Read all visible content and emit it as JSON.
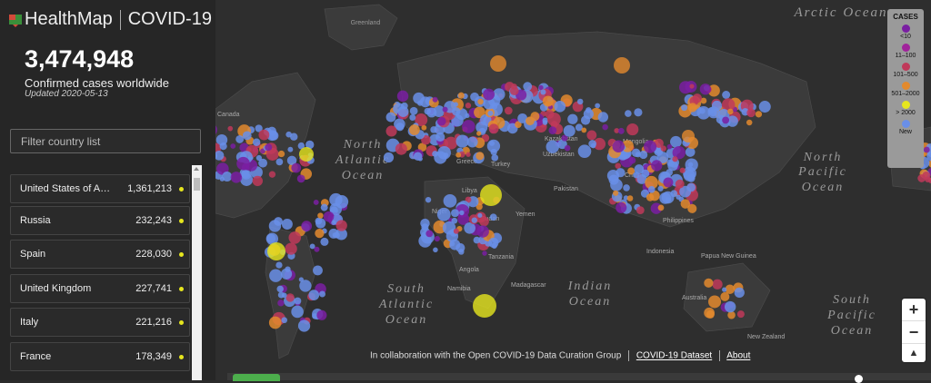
{
  "header": {
    "brand": "HealthMap",
    "product": "COVID-19"
  },
  "summary": {
    "total": "3,474,948",
    "label": "Confirmed cases worldwide",
    "updated": "Updated 2020-05-13"
  },
  "filter": {
    "placeholder": "Filter country list"
  },
  "countries": [
    {
      "name": "United States of America",
      "cases": "1,361,213"
    },
    {
      "name": "Russia",
      "cases": "232,243"
    },
    {
      "name": "Spain",
      "cases": "228,030"
    },
    {
      "name": "United Kingdom",
      "cases": "227,741"
    },
    {
      "name": "Italy",
      "cases": "221,216"
    },
    {
      "name": "France",
      "cases": "178,349"
    }
  ],
  "legend": {
    "title": "CASES",
    "items": [
      {
        "label": "<10",
        "color": "#7a1fa2"
      },
      {
        "label": "11–100",
        "color": "#a0239b"
      },
      {
        "label": "101–500",
        "color": "#c0395a"
      },
      {
        "label": "501–2000",
        "color": "#e38a2e"
      },
      {
        "label": "> 2000",
        "color": "#e6e61e"
      },
      {
        "label": "New",
        "color": "#6a8fe8"
      }
    ]
  },
  "map_labels": {
    "greenland": "Greenland",
    "arctic": "Arctic Ocean",
    "north_atlantic_1": "North",
    "north_atlantic_2": "Atlantic",
    "north_atlantic_3": "Ocean",
    "north_pacific_1": "North",
    "north_pacific_2": "Pacific",
    "north_pacific_3": "Ocean",
    "south_atlantic_1": "South",
    "south_atlantic_2": "Atlantic",
    "south_atlantic_3": "Ocean",
    "indian_1": "Indian",
    "indian_2": "Ocean",
    "south_pacific_1": "South",
    "south_pacific_2": "Pacific",
    "south_pacific_3": "Ocean",
    "canada": "Canada",
    "kazakhstan": "Kazakhstan",
    "mongolia": "Mongolia",
    "libya": "Libya",
    "sudan": "Sudan",
    "yemen": "Yemen",
    "angola": "Angola",
    "tanzania": "Tanzania",
    "namibia": "Namibia",
    "madagascar": "Madagascar",
    "indonesia": "Indonesia",
    "australia": "Australia",
    "papua": "Papua New Guinea",
    "new_zealand": "New Zealand",
    "niger": "Niger",
    "turkey": "Turkey",
    "uzbekistan": "Uzbekistan",
    "pakistan": "Pakistan",
    "china": "China",
    "philippines": "Philippines",
    "greece": "Greece"
  },
  "credits": {
    "text": "In collaboration with the Open COVID-19 Data Curation Group",
    "dataset": "COVID-19 Dataset",
    "about": "About"
  },
  "zoom": {
    "in": "+",
    "out": "−",
    "compass": "▲"
  }
}
